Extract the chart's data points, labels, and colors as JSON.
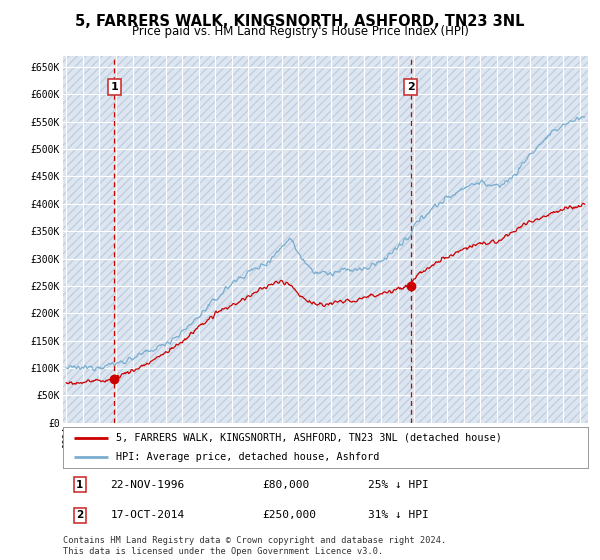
{
  "title": "5, FARRERS WALK, KINGSNORTH, ASHFORD, TN23 3NL",
  "subtitle": "Price paid vs. HM Land Registry's House Price Index (HPI)",
  "legend_line1": "5, FARRERS WALK, KINGSNORTH, ASHFORD, TN23 3NL (detached house)",
  "legend_line2": "HPI: Average price, detached house, Ashford",
  "annotation1_label": "1",
  "annotation1_date": "22-NOV-1996",
  "annotation1_price": "£80,000",
  "annotation1_hpi": "25% ↓ HPI",
  "annotation1_year": 1996.9,
  "annotation1_value": 80000,
  "annotation2_label": "2",
  "annotation2_date": "17-OCT-2014",
  "annotation2_price": "£250,000",
  "annotation2_hpi": "31% ↓ HPI",
  "annotation2_year": 2014.8,
  "annotation2_value": 250000,
  "ylim": [
    0,
    670000
  ],
  "yticks": [
    0,
    50000,
    100000,
    150000,
    200000,
    250000,
    300000,
    350000,
    400000,
    450000,
    500000,
    550000,
    600000,
    650000
  ],
  "xlim_start": 1993.8,
  "xlim_end": 2025.5,
  "background_color": "#dde6f0",
  "grid_color": "#ffffff",
  "red_line_color": "#cc0000",
  "blue_line_color": "#7aadcf",
  "vline_color": "#cc0000",
  "box_color": "#cc3333",
  "footer_text": "Contains HM Land Registry data © Crown copyright and database right 2024.\nThis data is licensed under the Open Government Licence v3.0."
}
